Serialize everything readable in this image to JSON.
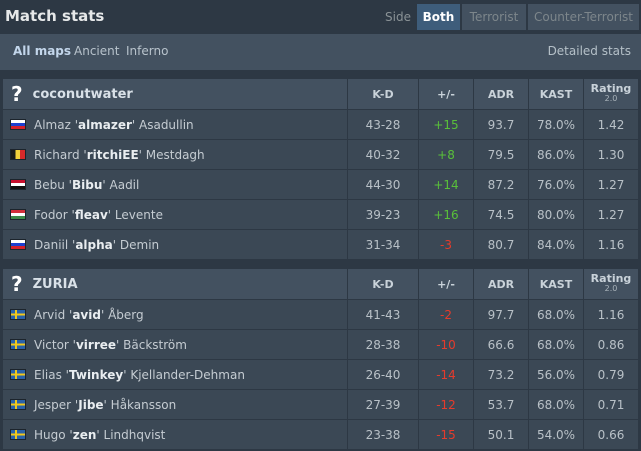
{
  "header": {
    "title": "Match stats",
    "side_label": "Side",
    "side_options": [
      "Both",
      "Terrorist",
      "Counter-Terrorist"
    ],
    "side_selected": "Both"
  },
  "maps": {
    "items": [
      "All maps",
      "Ancient",
      "Inferno"
    ],
    "selected": "All maps",
    "detailed_link": "Detailed stats"
  },
  "columns": {
    "kd": "K-D",
    "plusminus": "+/-",
    "adr": "ADR",
    "kast": "KAST",
    "rating": "Rating",
    "rating_version": "2.0"
  },
  "teams": [
    {
      "name": "coconutwater",
      "logo_icon": "question-mark-icon",
      "players": [
        {
          "flag": "ru",
          "first": "Almaz",
          "nick": "almazer",
          "last": "Asadullin",
          "kd": "43-28",
          "diff": "+15",
          "adr": "93.7",
          "kast": "78.0%",
          "rating": "1.42"
        },
        {
          "flag": "be",
          "first": "Richard",
          "nick": "ritchiEE",
          "last": "Mestdagh",
          "kd": "40-32",
          "diff": "+8",
          "adr": "79.5",
          "kast": "86.0%",
          "rating": "1.30"
        },
        {
          "flag": "eg",
          "first": "Bebu",
          "nick": "Bibu",
          "last": "Aadil",
          "kd": "44-30",
          "diff": "+14",
          "adr": "87.2",
          "kast": "76.0%",
          "rating": "1.27"
        },
        {
          "flag": "hu",
          "first": "Fodor",
          "nick": "fleav",
          "last": "Levente",
          "kd": "39-23",
          "diff": "+16",
          "adr": "74.5",
          "kast": "80.0%",
          "rating": "1.27"
        },
        {
          "flag": "ru",
          "first": "Daniil",
          "nick": "alpha",
          "last": "Demin",
          "kd": "31-34",
          "diff": "-3",
          "adr": "80.7",
          "kast": "84.0%",
          "rating": "1.16"
        }
      ]
    },
    {
      "name": "ZURIA",
      "logo_icon": "question-mark-icon",
      "players": [
        {
          "flag": "se",
          "first": "Arvid",
          "nick": "avid",
          "last": "Åberg",
          "kd": "41-43",
          "diff": "-2",
          "adr": "97.7",
          "kast": "68.0%",
          "rating": "1.16"
        },
        {
          "flag": "se",
          "first": "Victor",
          "nick": "virree",
          "last": "Bäckström",
          "kd": "28-38",
          "diff": "-10",
          "adr": "66.6",
          "kast": "68.0%",
          "rating": "0.86"
        },
        {
          "flag": "se",
          "first": "Elias",
          "nick": "Twinkey",
          "last": "Kjellander-Dehman",
          "kd": "26-40",
          "diff": "-14",
          "adr": "73.2",
          "kast": "56.0%",
          "rating": "0.79"
        },
        {
          "flag": "se",
          "first": "Jesper",
          "nick": "Jibe",
          "last": "Håkansson",
          "kd": "27-39",
          "diff": "-12",
          "adr": "53.7",
          "kast": "68.0%",
          "rating": "0.71"
        },
        {
          "flag": "se",
          "first": "Hugo",
          "nick": "zen",
          "last": "Lindhqvist",
          "kd": "23-38",
          "diff": "-15",
          "adr": "50.1",
          "kast": "54.0%",
          "rating": "0.66"
        }
      ]
    }
  ],
  "colors": {
    "positive": "#59c03a",
    "negative": "#e53b2c",
    "accent": "#3e5d7b"
  }
}
